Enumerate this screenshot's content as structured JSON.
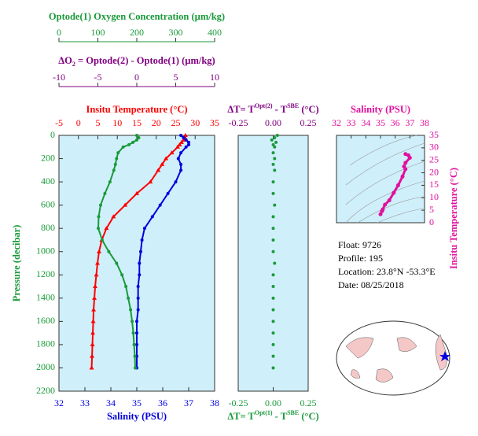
{
  "chart_data": [
    {
      "type": "profile",
      "ylabel": "Pressure (decibar)",
      "ylabel_color": "#1a9a3a",
      "ylim": [
        0,
        2200
      ],
      "yticks": [
        0,
        200,
        400,
        600,
        800,
        1000,
        1200,
        1400,
        1600,
        1800,
        2000,
        2200
      ],
      "pressure": [
        0,
        20,
        40,
        60,
        80,
        100,
        150,
        200,
        250,
        300,
        400,
        500,
        600,
        700,
        800,
        900,
        1000,
        1100,
        1200,
        1300,
        1400,
        1500,
        1600,
        1700,
        1800,
        1900,
        2000
      ],
      "axes": [
        {
          "side": "top1",
          "color": "#1a9a3a",
          "lim": [
            0,
            400
          ],
          "ticks": [
            0,
            100,
            200,
            300,
            400
          ],
          "title_parts": [
            {
              "text": "Optode(1) Oxygen Concentration (µm/kg)"
            }
          ]
        },
        {
          "side": "top2",
          "color": "#800080",
          "lim": [
            -10,
            10
          ],
          "ticks": [
            -10,
            -5,
            0,
            5,
            10
          ],
          "title_parts": [
            {
              "text": "ΔO"
            },
            {
              "text": "2",
              "sub": true
            },
            {
              "text": " = Optode(2) - Optode(1)   (µm/kg)"
            }
          ]
        },
        {
          "side": "top",
          "color": "#ff0000",
          "lim": [
            -5,
            35
          ],
          "ticks": [
            -5,
            0,
            5,
            10,
            15,
            20,
            25,
            30,
            35
          ],
          "title_parts": [
            {
              "text": "Insitu Temperature (°C)"
            }
          ]
        },
        {
          "side": "bottom",
          "color": "#0000e0",
          "lim": [
            32,
            38
          ],
          "ticks": [
            32,
            33,
            34,
            35,
            36,
            37,
            38
          ],
          "title_parts": [
            {
              "text": "Salinity (PSU)"
            }
          ]
        }
      ],
      "series": [
        {
          "axis": 2,
          "color": "#ff0000",
          "marker": "triangle",
          "line": true,
          "values": [
            27.5,
            27.4,
            27,
            26.5,
            26,
            25.5,
            24,
            22.5,
            21.5,
            20.5,
            18.5,
            15,
            12,
            9,
            7.2,
            6,
            5.3,
            4.9,
            4.6,
            4.3,
            4.1,
            3.9,
            3.8,
            3.7,
            3.6,
            3.5,
            3.4
          ]
        },
        {
          "axis": 3,
          "color": "#0000e0",
          "marker": "dot",
          "line": true,
          "values": [
            36.7,
            36.8,
            36.9,
            37,
            37,
            36.9,
            36.7,
            36.6,
            36.7,
            36.7,
            36.5,
            36.2,
            35.9,
            35.6,
            35.3,
            35.2,
            35.15,
            35.1,
            35.1,
            35.05,
            35.05,
            35.05,
            35,
            35,
            35,
            35,
            35
          ]
        },
        {
          "axis": 0,
          "color": "#1a9a3a",
          "marker": "dot",
          "line": true,
          "values": [
            200,
            205,
            200,
            190,
            180,
            165,
            152,
            148,
            145,
            141,
            131,
            118,
            107,
            102,
            101,
            111,
            128,
            148,
            162,
            172,
            178,
            184,
            188,
            191,
            193,
            195,
            196
          ]
        }
      ]
    },
    {
      "type": "profile",
      "ylim": [
        0,
        2200
      ],
      "pressure": [
        0,
        20,
        40,
        60,
        80,
        100,
        150,
        200,
        250,
        300,
        400,
        500,
        600,
        700,
        800,
        900,
        1000,
        1100,
        1200,
        1300,
        1400,
        1500,
        1600,
        1700,
        1800,
        1900,
        2000
      ],
      "axes": [
        {
          "side": "top",
          "color": "#800080",
          "lim": [
            -0.25,
            0.25
          ],
          "ticks": [
            -0.25,
            {
              "value": 0,
              "label": "0.00"
            },
            0.25
          ],
          "title_parts": [
            {
              "text": "ΔT= T"
            },
            {
              "text": "Opt(2)",
              "sup": true
            },
            {
              "text": " - T"
            },
            {
              "text": "SBE",
              "sup": true
            },
            {
              "text": " (°C)"
            }
          ]
        },
        {
          "side": "bottom",
          "color": "#1a9a3a",
          "lim": [
            -0.25,
            0.25
          ],
          "ticks": [
            -0.25,
            {
              "value": 0,
              "label": "0.00"
            },
            0.25
          ],
          "title_parts": [
            {
              "text": "ΔT= T"
            },
            {
              "text": "Opt(1)",
              "sup": true
            },
            {
              "text": " - T"
            },
            {
              "text": "SBE",
              "sup": true
            },
            {
              "text": " (°C)"
            }
          ]
        }
      ],
      "series": [
        {
          "axis": 1,
          "color": "#1a9a3a",
          "marker": "dot",
          "line": false,
          "values": [
            0.03,
            0.01,
            -0.01,
            0.02,
            0,
            0.01,
            0,
            0.01,
            0,
            0.01,
            0,
            0,
            0.01,
            0,
            0,
            0,
            0,
            0.01,
            0,
            0,
            0,
            0,
            0,
            0,
            0,
            0,
            0
          ]
        }
      ]
    },
    {
      "type": "ts",
      "title": "Salinity (PSU)",
      "ylabel": "Insitu Temperature (°C)",
      "color": "#e0109f",
      "xlim": [
        32,
        38
      ],
      "xticks": [
        32,
        33,
        34,
        35,
        36,
        37,
        38
      ],
      "ylim": [
        0,
        35
      ],
      "yticks": [
        0,
        5,
        10,
        15,
        20,
        25,
        30,
        35
      ],
      "x": [
        36.7,
        36.9,
        37,
        36.7,
        36.6,
        36.7,
        36.5,
        36.2,
        35.9,
        35.6,
        35.3,
        35.15,
        35.1,
        35
      ],
      "values": [
        27.5,
        27,
        26,
        24,
        22.5,
        21.5,
        18.5,
        15,
        12,
        9,
        7.2,
        5.3,
        4.6,
        3.4
      ]
    }
  ],
  "info": [
    "Float:  9726",
    "Profile:  195",
    "Location:  23.8°N  -53.3°E",
    "Date:  08/25/2018"
  ]
}
